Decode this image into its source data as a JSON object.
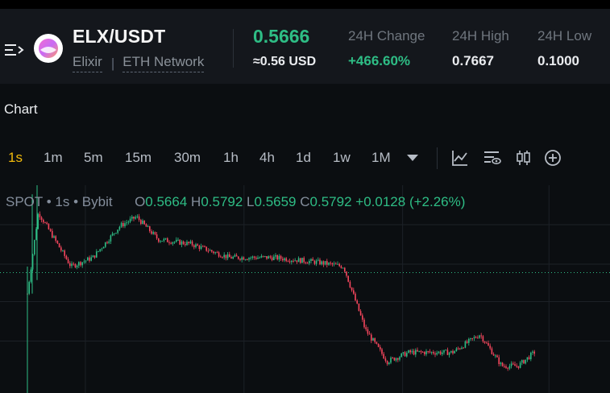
{
  "header": {
    "pair": "ELX/USDT",
    "token_name": "Elixir",
    "network": "ETH Network",
    "price": "0.5666",
    "fiat": "≈0.56 USD",
    "stats": [
      {
        "label": "24H Change",
        "value": "+466.60%",
        "color": "#2ebd85"
      },
      {
        "label": "24H High",
        "value": "0.7667"
      },
      {
        "label": "24H Low",
        "value": "0.1000"
      }
    ]
  },
  "section_title": "Chart",
  "toolbar": {
    "timeframes": [
      "1s",
      "1m",
      "5m",
      "15m",
      "30m",
      "1h",
      "4h",
      "1d",
      "1w",
      "1M"
    ],
    "active": "1s",
    "icons": [
      "dropdown-caret-icon",
      "indicators-icon",
      "chart-settings-icon",
      "candle-type-icon",
      "add-icon"
    ]
  },
  "legend": {
    "source": "SPOT",
    "interval": "1s",
    "exchange": "Bybit",
    "o_label": "O",
    "o": "0.5664",
    "h_label": "H",
    "h": "0.5792",
    "l_label": "L",
    "l": "0.5659",
    "c_label": "C",
    "c": "0.5792",
    "change": "+0.0128",
    "change_pct": "(+2.26%)"
  },
  "colors": {
    "up": "#2ebd85",
    "down": "#f6465d",
    "accent": "#f0b90b",
    "background": "#0b0e11"
  },
  "chart_data": {
    "type": "candlestick",
    "title": "",
    "price_anchors": [
      [
        0.0,
        0.52
      ],
      [
        0.02,
        0.7
      ],
      [
        0.06,
        0.62
      ],
      [
        0.08,
        0.58
      ],
      [
        0.12,
        0.6
      ],
      [
        0.17,
        0.67
      ],
      [
        0.2,
        0.69
      ],
      [
        0.24,
        0.64
      ],
      [
        0.3,
        0.63
      ],
      [
        0.37,
        0.6
      ],
      [
        0.45,
        0.6
      ],
      [
        0.53,
        0.59
      ],
      [
        0.58,
        0.58
      ],
      [
        0.62,
        0.44
      ],
      [
        0.66,
        0.37
      ],
      [
        0.7,
        0.39
      ],
      [
        0.78,
        0.39
      ],
      [
        0.83,
        0.43
      ],
      [
        0.87,
        0.36
      ],
      [
        0.9,
        0.36
      ],
      [
        0.93,
        0.39
      ]
    ],
    "last_price_line": 0.5666
  }
}
